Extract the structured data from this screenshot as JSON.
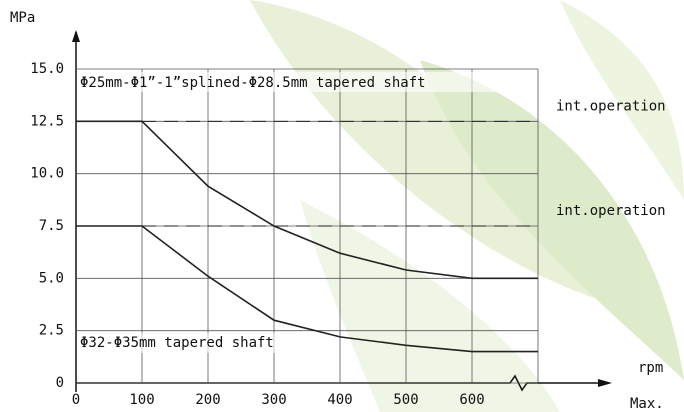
{
  "chart_data": {
    "type": "line",
    "y_label": "MPa",
    "x_label": "rpm",
    "x_max_label": "Max.",
    "x": [
      0,
      100,
      200,
      300,
      400,
      500,
      600,
      700
    ],
    "series": [
      {
        "name": "Φ25mm-Φ1”-1”splined-Φ28.5mm tapered shaft",
        "color": "#222222",
        "values": [
          12.5,
          12.5,
          9.4,
          7.5,
          6.2,
          5.4,
          5.0,
          5.0
        ]
      },
      {
        "name": "Φ32-Φ35mm tapered shaft",
        "color": "#222222",
        "values": [
          7.5,
          7.5,
          5.1,
          3.0,
          2.2,
          1.8,
          1.5,
          1.5
        ]
      }
    ],
    "reference_lines": [
      {
        "value": 12.5,
        "from": 100,
        "label": "int.operation"
      },
      {
        "value": 7.5,
        "from": 100,
        "label": "int.operation"
      }
    ],
    "xlim": [
      0,
      700
    ],
    "ylim": [
      0,
      15
    ],
    "xticks": [
      0,
      100,
      200,
      300,
      400,
      500,
      600
    ],
    "yticks": [
      0,
      2.5,
      {
        "value": 5,
        "label": "5.0"
      },
      7.5,
      {
        "value": 10,
        "label": "10.0"
      },
      12.5,
      {
        "value": 15,
        "label": "15.0"
      }
    ],
    "grid": true
  }
}
